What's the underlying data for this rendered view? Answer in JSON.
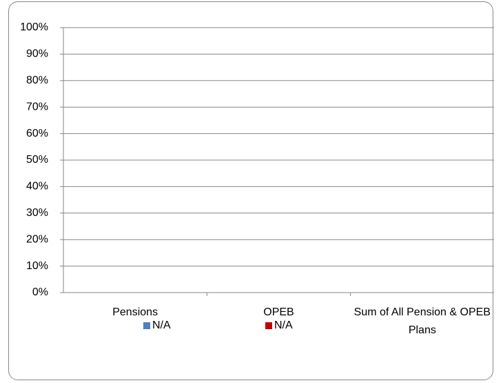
{
  "chart_data": {
    "type": "bar",
    "categories": [
      "Pensions",
      "OPEB",
      "Sum of All Pension & OPEB Plans"
    ],
    "series": [
      {
        "name": "N/A",
        "color": "#4f81bd",
        "values": [
          null,
          null,
          null
        ]
      },
      {
        "name": "N/A",
        "color": "#c00000",
        "values": [
          null,
          null,
          null
        ]
      }
    ],
    "ylim": [
      0,
      100
    ],
    "yticks": [
      {
        "value": 0,
        "label": "0%"
      },
      {
        "value": 10,
        "label": "10%"
      },
      {
        "value": 20,
        "label": "20%"
      },
      {
        "value": 30,
        "label": "30%"
      },
      {
        "value": 40,
        "label": "40%"
      },
      {
        "value": 50,
        "label": "50%"
      },
      {
        "value": 60,
        "label": "60%"
      },
      {
        "value": 70,
        "label": "70%"
      },
      {
        "value": 80,
        "label": "80%"
      },
      {
        "value": 90,
        "label": "90%"
      },
      {
        "value": 100,
        "label": "100%"
      }
    ],
    "grid": true
  }
}
